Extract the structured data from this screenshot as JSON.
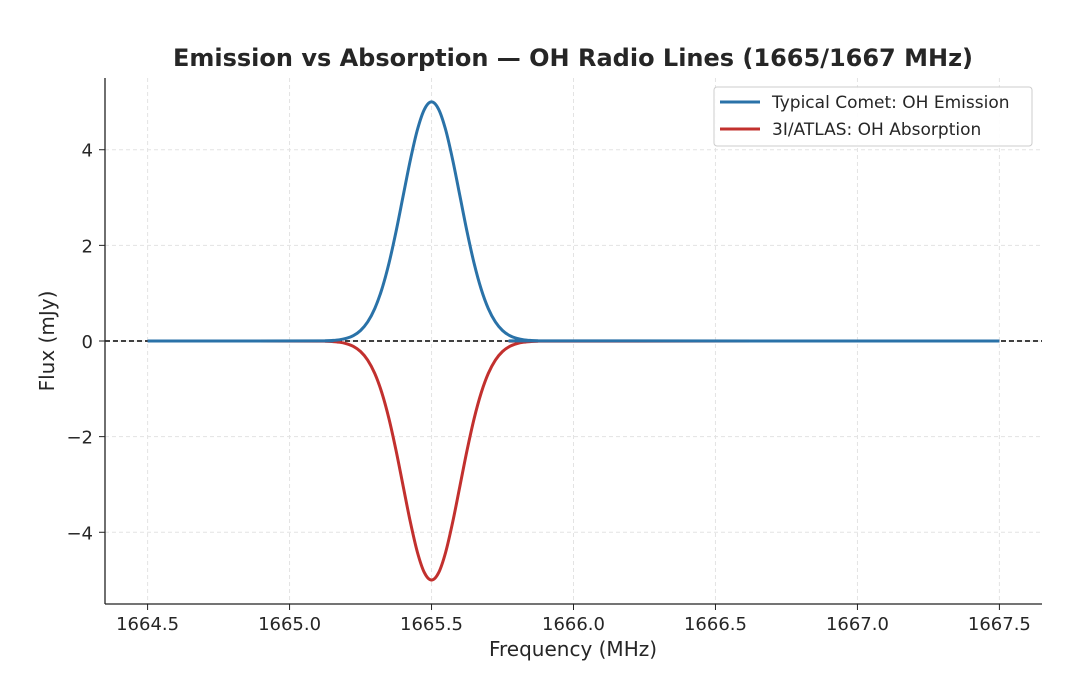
{
  "chart_data": {
    "type": "line",
    "title": "Emission vs Absorption — OH Radio Lines (1665/1667 MHz)",
    "xlabel": "Frequency (MHz)",
    "ylabel": "Flux (mJy)",
    "xlim": [
      1664.35,
      1667.65
    ],
    "ylim": [
      -5.5,
      5.5
    ],
    "xticks": [
      "1664.5",
      "1665.0",
      "1665.5",
      "1666.0",
      "1666.5",
      "1667.0",
      "1667.5"
    ],
    "yticks": [
      "−4",
      "−2",
      "0",
      "2",
      "4"
    ],
    "grid": true,
    "legend_position": "top-right",
    "reference_line": {
      "y": 0,
      "style": "dashed",
      "color": "#000000"
    },
    "x": [
      1664.5,
      1665.1,
      1665.125,
      1665.15,
      1665.175,
      1665.2,
      1665.225,
      1665.25,
      1665.275,
      1665.3,
      1665.325,
      1665.35,
      1665.375,
      1665.4,
      1665.425,
      1665.45,
      1665.475,
      1665.5,
      1665.525,
      1665.55,
      1665.575,
      1665.6,
      1665.625,
      1665.65,
      1665.675,
      1665.7,
      1665.725,
      1665.75,
      1665.775,
      1665.8,
      1665.825,
      1665.85,
      1665.875,
      1665.9,
      1667.5
    ],
    "series": [
      {
        "name": "Typical Comet: OH Emission",
        "color": "#2a72a8",
        "values": [
          0,
          0.002,
          0.004,
          0.011,
          0.025,
          0.056,
          0.114,
          0.22,
          0.398,
          0.677,
          1.082,
          1.623,
          2.289,
          3.033,
          3.774,
          4.412,
          4.846,
          5,
          4.846,
          4.412,
          3.774,
          3.033,
          2.289,
          1.623,
          1.082,
          0.677,
          0.398,
          0.22,
          0.114,
          0.056,
          0.025,
          0.011,
          0.004,
          0.002,
          0
        ]
      },
      {
        "name": "3I/ATLAS: OH Absorption",
        "color": "#c2302e",
        "values": [
          0,
          -0.002,
          -0.004,
          -0.011,
          -0.025,
          -0.056,
          -0.114,
          -0.22,
          -0.398,
          -0.677,
          -1.082,
          -1.623,
          -2.289,
          -3.033,
          -3.774,
          -4.412,
          -4.846,
          -5,
          -4.846,
          -4.412,
          -3.774,
          -3.033,
          -2.289,
          -1.623,
          -1.082,
          -0.677,
          -0.398,
          -0.22,
          -0.114,
          -0.056,
          -0.025,
          -0.011,
          -0.004,
          -0.002,
          0
        ]
      }
    ]
  }
}
